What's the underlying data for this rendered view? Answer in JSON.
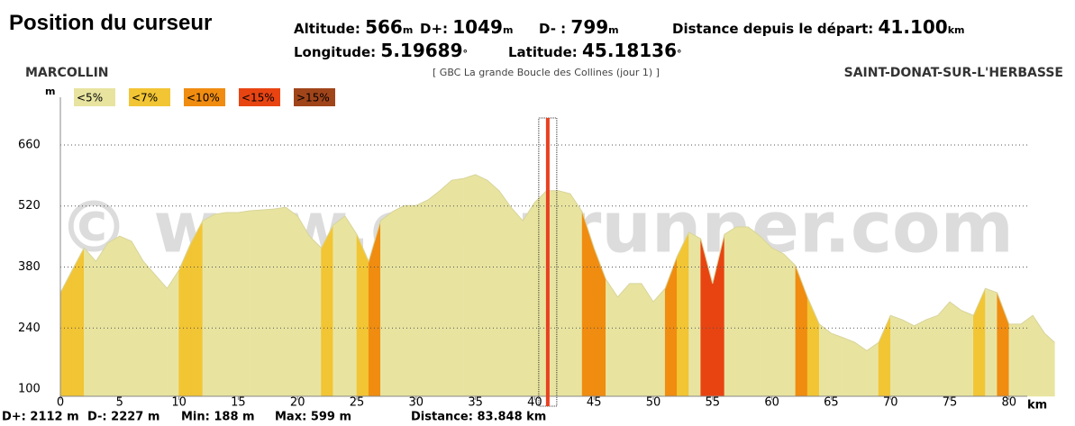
{
  "header": {
    "title": "Position du curseur",
    "fields": [
      {
        "label": "Altitude:",
        "value": "566",
        "unit": "m"
      },
      {
        "label": "D+:",
        "value": "1049",
        "unit": "m"
      },
      {
        "label": "D- :",
        "value": "799",
        "unit": "m"
      },
      {
        "label": "Distance depuis le départ:",
        "value": {
          "value": 41.1,
          "label": "41.100"
        },
        "unit": "km"
      },
      {
        "label": "Longitude:",
        "value": "5.19689",
        "unit": "°"
      },
      {
        "label": "Latitude:",
        "value": "45.18136",
        "unit": "°"
      }
    ]
  },
  "chart_data": {
    "type": "area",
    "start": "MARCOLLIN",
    "route": "[ GBC La grande Boucle des Collines (jour 1) ]",
    "end": "SAINT-DONAT-SUR-L'HERBASSE",
    "watermark": "© www.openrunner.com",
    "ylabel": "m",
    "xlabel": "km",
    "legend": [
      {
        "value": 5,
        "label": "<5%",
        "color": "#e8e4a0"
      },
      {
        "value": 7,
        "label": "<7%",
        "color": "#f2c534"
      },
      {
        "value": 10,
        "label": "<10%",
        "color": "#f08c10"
      },
      {
        "value": 15,
        "label": "<15%",
        "color": "#e84412"
      },
      {
        "value": 100,
        "label": ">15%",
        "color": "#a0441a"
      }
    ],
    "x": [
      0,
      1,
      2,
      3,
      4,
      5,
      6,
      7,
      8,
      9,
      10,
      11,
      12,
      13,
      14,
      15,
      16,
      17,
      18,
      19,
      20,
      21,
      22,
      23,
      24,
      25,
      26,
      27,
      28,
      29,
      30,
      31,
      32,
      33,
      34,
      35,
      36,
      37,
      38,
      39,
      40,
      41,
      42,
      43,
      44,
      45,
      46,
      47,
      48,
      49,
      50,
      51,
      52,
      53,
      54,
      55,
      56,
      57,
      58,
      59,
      60,
      61,
      62,
      63,
      64,
      65,
      66,
      67,
      68,
      69,
      70,
      71,
      72,
      73,
      74,
      75,
      76,
      77,
      78,
      79,
      80,
      81,
      82,
      83,
      83.848
    ],
    "values": [
      321,
      373,
      424,
      393,
      435,
      451,
      439,
      393,
      362,
      331,
      373,
      435,
      486,
      501,
      505,
      505,
      509,
      511,
      513,
      517,
      497,
      451,
      424,
      476,
      497,
      455,
      393,
      486,
      507,
      521,
      521,
      534,
      555,
      579,
      583,
      592,
      579,
      555,
      517,
      486,
      528,
      555,
      555,
      548,
      507,
      424,
      352,
      311,
      342,
      342,
      300,
      331,
      404,
      460,
      445,
      342,
      455,
      472,
      472,
      451,
      424,
      410,
      383,
      311,
      249,
      228,
      218,
      207,
      188,
      207,
      269,
      259,
      245,
      259,
      269,
      300,
      280,
      269,
      331,
      321,
      249,
      249,
      269,
      228,
      207
    ],
    "xlim": [
      0,
      84.5
    ],
    "ylim": [
      83.5,
      724
    ],
    "xticks": [
      0,
      5,
      10,
      15,
      20,
      25,
      30,
      35,
      40,
      45,
      50,
      55,
      60,
      65,
      70,
      75,
      80
    ],
    "yticks": [
      100,
      240,
      380,
      520,
      660
    ],
    "grid": true,
    "footer": [
      "D+: 2112 m",
      "D-: 2227 m",
      "Min: 188 m",
      "Max: 599 m",
      "Distance: 83.848 km"
    ]
  }
}
